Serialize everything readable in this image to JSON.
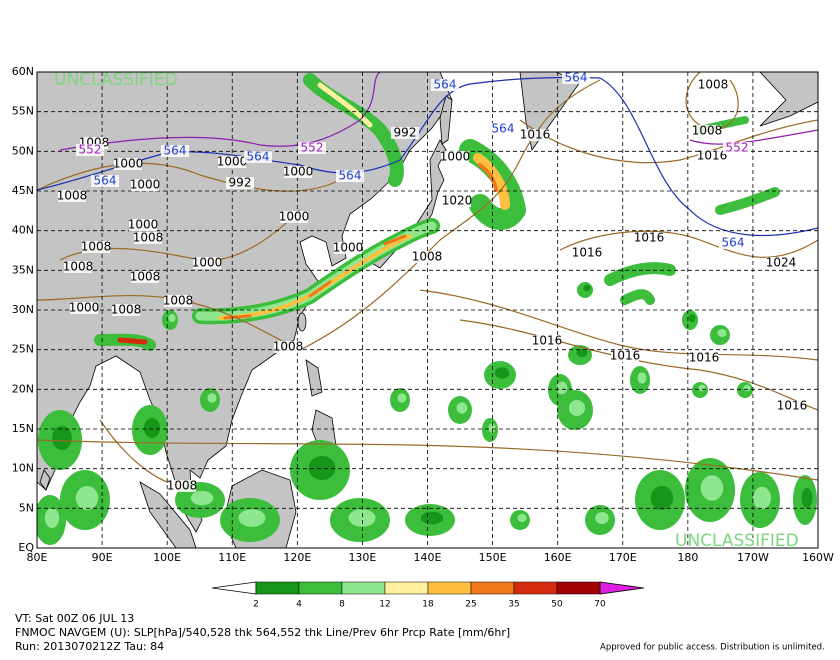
{
  "map": {
    "lat_labels": [
      "60N",
      "55N",
      "50N",
      "45N",
      "40N",
      "35N",
      "30N",
      "25N",
      "20N",
      "15N",
      "10N",
      "5N",
      "EQ"
    ],
    "lon_labels": [
      "80E",
      "90E",
      "100E",
      "110E",
      "120E",
      "130E",
      "140E",
      "150E",
      "160E",
      "170E",
      "180",
      "170W",
      "160W"
    ],
    "watermarks": [
      "UNCLASSIFIED",
      "UNCLASSIFIED"
    ],
    "contour_labels": [
      {
        "text": "1008",
        "color": "#000000"
      },
      {
        "text": "1008",
        "color": "#000000"
      },
      {
        "text": "1016",
        "color": "#000000"
      },
      {
        "text": "1016",
        "color": "#000000"
      },
      {
        "text": "1000",
        "color": "#000000"
      },
      {
        "text": "992",
        "color": "#000000"
      },
      {
        "text": "1000",
        "color": "#000000"
      },
      {
        "text": "992",
        "color": "#000000"
      },
      {
        "text": "1000",
        "color": "#000000"
      },
      {
        "text": "1000",
        "color": "#000000"
      },
      {
        "text": "1008",
        "color": "#000000"
      },
      {
        "text": "1000",
        "color": "#000000"
      },
      {
        "text": "1008",
        "color": "#000000"
      },
      {
        "text": "1008",
        "color": "#000000"
      },
      {
        "text": "1008",
        "color": "#000000"
      },
      {
        "text": "1008",
        "color": "#000000"
      },
      {
        "text": "1000",
        "color": "#000000"
      },
      {
        "text": "1000",
        "color": "#000000"
      },
      {
        "text": "1000",
        "color": "#000000"
      },
      {
        "text": "1008",
        "color": "#000000"
      },
      {
        "text": "1020",
        "color": "#000000"
      },
      {
        "text": "1016",
        "color": "#000000"
      },
      {
        "text": "1016",
        "color": "#000000"
      },
      {
        "text": "1024",
        "color": "#000000"
      },
      {
        "text": "1016",
        "color": "#000000"
      },
      {
        "text": "1016",
        "color": "#000000"
      },
      {
        "text": "1016",
        "color": "#000000"
      },
      {
        "text": "1016",
        "color": "#000000"
      },
      {
        "text": "1008",
        "color": "#000000"
      },
      {
        "text": "1000",
        "color": "#000000"
      },
      {
        "text": "1008",
        "color": "#000000"
      },
      {
        "text": "1008",
        "color": "#000000"
      },
      {
        "text": "1008",
        "color": "#000000"
      },
      {
        "text": "1008",
        "color": "#000000"
      },
      {
        "text": "1000",
        "color": "#000000"
      },
      {
        "text": "564",
        "color": "#2040d0"
      },
      {
        "text": "564",
        "color": "#2040d0"
      },
      {
        "text": "564",
        "color": "#2040d0"
      },
      {
        "text": "564",
        "color": "#2040d0"
      },
      {
        "text": "564",
        "color": "#2040d0"
      },
      {
        "text": "564",
        "color": "#2040d0"
      },
      {
        "text": "564",
        "color": "#2040d0"
      },
      {
        "text": "564",
        "color": "#2040d0"
      },
      {
        "text": "552",
        "color": "#a020c0"
      },
      {
        "text": "552",
        "color": "#a020c0"
      },
      {
        "text": "552",
        "color": "#a020c0"
      }
    ]
  },
  "legend": {
    "ticks": [
      2,
      4,
      8,
      12,
      18,
      25,
      35,
      50,
      70
    ],
    "colors": [
      "#16961a",
      "#3cbe3c",
      "#8ee68e",
      "#fff0a0",
      "#ffc040",
      "#f07818",
      "#d42a10",
      "#a00000"
    ],
    "over_color": "#e020e0"
  },
  "footer": {
    "valid_time": "VT: Sat 00Z 06 JUL 13",
    "description": "FNMOC NAVGEM (U): SLP[hPa]/540,528 thk 564,552 thk Line/Prev 6hr Prcp Rate [mm/6hr]",
    "run": "Run: 2013070212Z Tau: 84",
    "notice": "Approved for public access. Distribution is unlimited."
  }
}
